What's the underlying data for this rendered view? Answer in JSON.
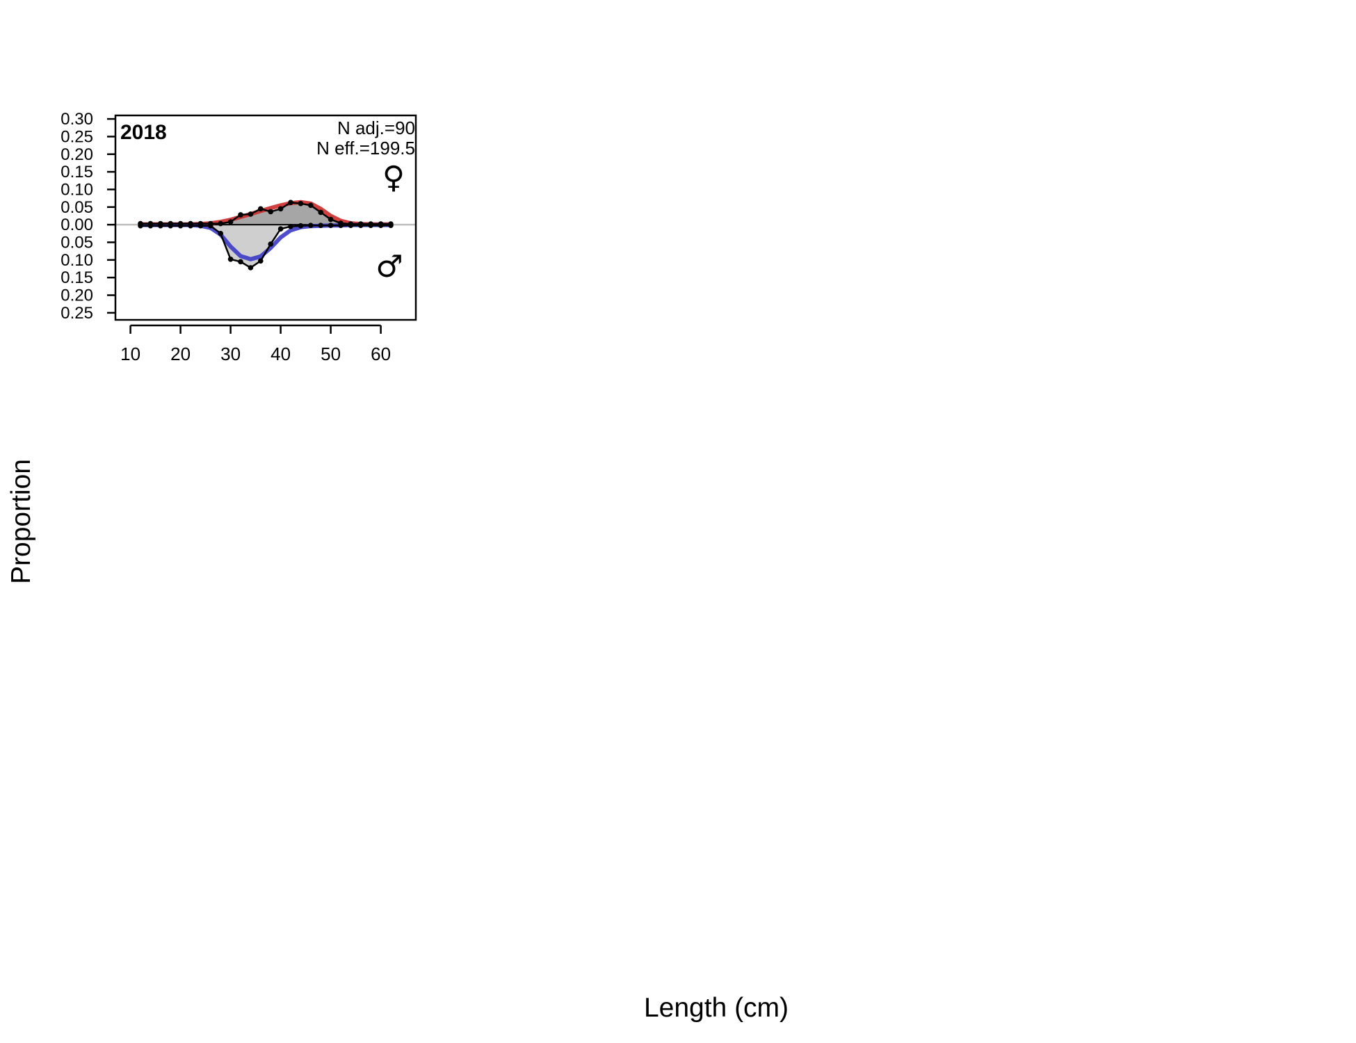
{
  "figure": {
    "xlabel": "Length (cm)",
    "ylabel": "Proportion"
  },
  "chart_data": {
    "type": "line",
    "panel_label": "2018",
    "annotations": [
      "N adj.=90",
      "N eff.=199.5"
    ],
    "sex_symbols": {
      "female": "♀",
      "male": "♂"
    },
    "colors": {
      "female_expected": "#cc2a2a",
      "male_expected": "#3b3bc8",
      "observed": "#000000",
      "female_fill": "#a6a6a6",
      "male_fill": "#cfcfcf",
      "zero_line": "#bdbdbd"
    },
    "xlim": [
      7,
      67
    ],
    "ylim": [
      -0.27,
      0.31
    ],
    "x_ticks": [
      10,
      20,
      30,
      40,
      50,
      60
    ],
    "x_tick_labels": [
      "10",
      "20",
      "30",
      "40",
      "50",
      "60"
    ],
    "y_ticks": [
      0.3,
      0.25,
      0.2,
      0.15,
      0.1,
      0.05,
      0.0,
      -0.05,
      -0.1,
      -0.15,
      -0.2,
      -0.25
    ],
    "y_tick_labels": [
      "0.30",
      "0.25",
      "0.20",
      "0.15",
      "0.10",
      "0.05",
      "0.00",
      "0.05",
      "0.10",
      "0.15",
      "0.20",
      "0.25"
    ],
    "x": [
      12,
      14,
      16,
      18,
      20,
      22,
      24,
      26,
      28,
      30,
      32,
      34,
      36,
      38,
      40,
      42,
      44,
      46,
      48,
      50,
      52,
      54,
      56,
      58,
      60,
      62
    ],
    "series": [
      {
        "name": "Female observed",
        "role": "observed",
        "values": [
          0.003,
          0.003,
          0.003,
          0.003,
          0.003,
          0.003,
          0.003,
          0.003,
          0.003,
          0.008,
          0.028,
          0.03,
          0.045,
          0.037,
          0.045,
          0.063,
          0.06,
          0.055,
          0.035,
          0.015,
          0.004,
          0.002,
          0.002,
          0.002,
          0.002,
          0.002
        ]
      },
      {
        "name": "Female expected",
        "role": "expected",
        "values": [
          0.001,
          0.001,
          0.001,
          0.001,
          0.001,
          0.001,
          0.002,
          0.004,
          0.008,
          0.014,
          0.022,
          0.03,
          0.039,
          0.047,
          0.055,
          0.061,
          0.064,
          0.06,
          0.045,
          0.025,
          0.011,
          0.004,
          0.002,
          0.001,
          0.001,
          0.001
        ]
      },
      {
        "name": "Male observed",
        "role": "observed",
        "values": [
          -0.003,
          -0.003,
          -0.003,
          -0.003,
          -0.003,
          -0.003,
          -0.003,
          -0.003,
          -0.025,
          -0.098,
          -0.105,
          -0.122,
          -0.103,
          -0.055,
          -0.012,
          -0.005,
          -0.003,
          -0.002,
          -0.002,
          -0.002,
          -0.002,
          -0.002,
          -0.002,
          -0.002,
          -0.002,
          -0.002
        ]
      },
      {
        "name": "Male expected",
        "role": "expected",
        "values": [
          -0.001,
          -0.001,
          -0.001,
          -0.001,
          -0.001,
          -0.001,
          -0.003,
          -0.009,
          -0.028,
          -0.062,
          -0.089,
          -0.098,
          -0.09,
          -0.066,
          -0.036,
          -0.016,
          -0.007,
          -0.004,
          -0.003,
          -0.002,
          -0.002,
          -0.001,
          -0.001,
          -0.001,
          -0.001,
          -0.001
        ]
      }
    ]
  }
}
